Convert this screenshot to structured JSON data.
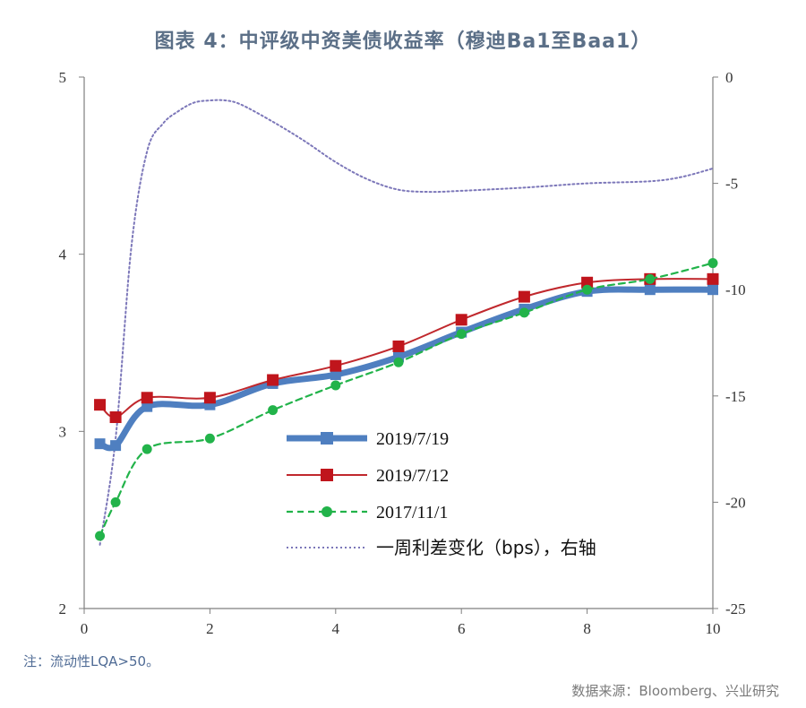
{
  "title": "图表 4：中评级中资美债收益率（穆迪Ba1至Baa1）",
  "note": "注：流动性LQA>50。",
  "source": "数据来源：Bloomberg、兴业研究",
  "chart_data": {
    "type": "line",
    "x_range": [
      0,
      10
    ],
    "y_left_range": [
      2,
      5
    ],
    "y_right_range": [
      -25,
      0
    ],
    "x_ticks": [
      "0",
      "2",
      "4",
      "6",
      "8",
      "10"
    ],
    "y_left_ticks": [
      "2",
      "3",
      "4",
      "5"
    ],
    "y_right_ticks": [
      "-25",
      "-20",
      "-15",
      "-10",
      "-5",
      "0"
    ],
    "legend_position": "center",
    "grid": false,
    "series": [
      {
        "name": "2019/7/19",
        "axis": "left",
        "color": "#4f7fc0",
        "marker": "square",
        "style": "thick",
        "x": [
          0.25,
          0.5,
          1,
          2,
          3,
          4,
          5,
          6,
          7,
          8,
          9,
          10
        ],
        "y": [
          2.93,
          2.92,
          3.14,
          3.15,
          3.27,
          3.32,
          3.42,
          3.56,
          3.69,
          3.79,
          3.8,
          3.8
        ]
      },
      {
        "name": "2019/7/12",
        "axis": "left",
        "color": "#c0282d",
        "marker": "square",
        "style": "solid",
        "x": [
          0.25,
          0.5,
          1,
          2,
          3,
          4,
          5,
          6,
          7,
          8,
          9,
          10
        ],
        "y": [
          3.15,
          3.08,
          3.19,
          3.19,
          3.29,
          3.37,
          3.48,
          3.63,
          3.76,
          3.84,
          3.86,
          3.86
        ]
      },
      {
        "name": "2017/11/1",
        "axis": "left",
        "color": "#22b34a",
        "marker": "circle",
        "style": "dashed",
        "x": [
          0.25,
          0.5,
          1,
          2,
          3,
          4,
          5,
          6,
          7,
          8,
          9,
          10
        ],
        "y": [
          2.41,
          2.6,
          2.9,
          2.96,
          3.12,
          3.26,
          3.39,
          3.55,
          3.67,
          3.8,
          3.86,
          3.95
        ]
      },
      {
        "name": "一周利差变化（bps），右轴",
        "axis": "right",
        "color": "#7c77b9",
        "marker": "none",
        "style": "dotted",
        "x": [
          0.25,
          0.5,
          0.75,
          1,
          1.25,
          1.5,
          1.75,
          2,
          2.25,
          2.5,
          3,
          3.5,
          4,
          4.5,
          5,
          5.5,
          6,
          7,
          8,
          9,
          9.5,
          10
        ],
        "y": [
          -22,
          -17,
          -8,
          -3.5,
          -2.2,
          -1.6,
          -1.2,
          -1.1,
          -1.1,
          -1.3,
          -2.1,
          -3,
          -4,
          -4.8,
          -5.3,
          -5.4,
          -5.35,
          -5.2,
          -5,
          -4.9,
          -4.7,
          -4.3
        ]
      }
    ]
  }
}
